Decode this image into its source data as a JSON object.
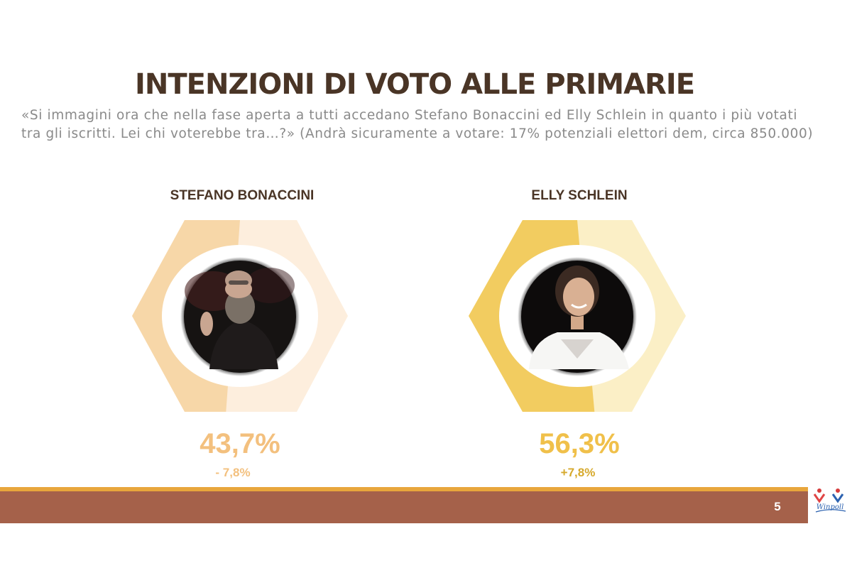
{
  "title": "INTENZIONI DI VOTO ALLE PRIMARIE",
  "question": "«Si immagini ora che nella fase aperta a tutti accedano Stefano Bonaccini ed Elly Schlein in quanto i più votati tra gli iscritti. Lei chi voterebbe tra…?» (Andrà sicuramente a votare: 17% potenziali elettori dem, circa 850.000)",
  "chart_data": {
    "type": "pie",
    "series": [
      {
        "name": "STEFANO BONACCINI",
        "value": 43.7,
        "value_label": "43,7%",
        "delta": "- 7,8%",
        "color": "#f7d7a8",
        "track_color": "#fdeedd",
        "value_color": "#f3c07e",
        "delta_color": "#f3c07e"
      },
      {
        "name": "ELLY SCHLEIN",
        "value": 56.3,
        "value_label": "56,3%",
        "delta": "+7,8%",
        "color": "#f2cc60",
        "track_color": "#fbefc6",
        "value_color": "#f0c04a",
        "delta_color": "#d6a92c"
      }
    ]
  },
  "footer": {
    "page_number": "5",
    "logo_text": "Winpoll",
    "line_color": "#e8a63c",
    "bar_color": "#a5614a"
  }
}
